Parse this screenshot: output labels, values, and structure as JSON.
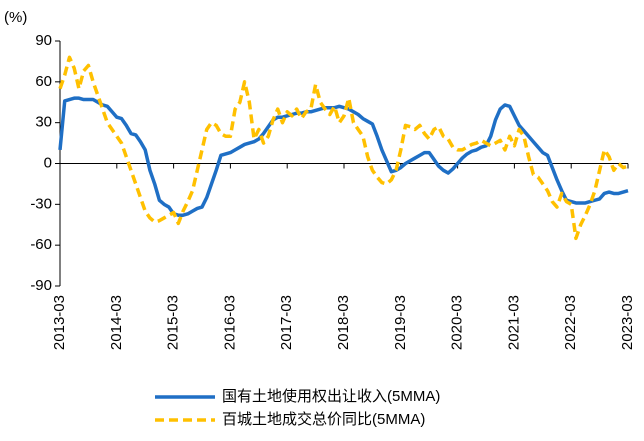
{
  "chart_data": {
    "type": "line",
    "y_unit": "(%)",
    "categories": [
      "2013-03",
      null,
      null,
      null,
      null,
      null,
      null,
      null,
      null,
      null,
      null,
      null,
      "2014-03",
      null,
      null,
      null,
      null,
      null,
      null,
      null,
      null,
      null,
      null,
      null,
      "2015-03",
      null,
      null,
      null,
      null,
      null,
      null,
      null,
      null,
      null,
      null,
      null,
      "2016-03",
      null,
      null,
      null,
      null,
      null,
      null,
      null,
      null,
      null,
      null,
      null,
      "2017-03",
      null,
      null,
      null,
      null,
      null,
      null,
      null,
      null,
      null,
      null,
      null,
      "2018-03",
      null,
      null,
      null,
      null,
      null,
      null,
      null,
      null,
      null,
      null,
      null,
      "2019-03",
      null,
      null,
      null,
      null,
      null,
      null,
      null,
      null,
      null,
      null,
      null,
      "2020-03",
      null,
      null,
      null,
      null,
      null,
      null,
      null,
      null,
      null,
      null,
      null,
      "2021-03",
      null,
      null,
      null,
      null,
      null,
      null,
      null,
      null,
      null,
      null,
      null,
      "2022-03",
      null,
      null,
      null,
      null,
      null,
      null,
      null,
      null,
      null,
      null,
      null,
      "2023-03"
    ],
    "series": [
      {
        "name": "国有土地使用权出让收入(5MMA)",
        "color": "#1f6fc5",
        "style": "solid",
        "values": [
          10,
          46,
          47,
          48,
          48,
          47,
          47,
          47,
          45,
          43,
          42,
          38,
          34,
          33,
          28,
          22,
          21,
          16,
          10,
          -5,
          -15,
          -27,
          -30,
          -32,
          -37,
          -38,
          -38,
          -37,
          -35,
          -33,
          -32,
          -25,
          -15,
          -5,
          6,
          7,
          8,
          10,
          12,
          14,
          15,
          16,
          18,
          22,
          27,
          32,
          34,
          34,
          35,
          36,
          37,
          37,
          38,
          38,
          39,
          40,
          41,
          41,
          41,
          42,
          41,
          40,
          38,
          36,
          33,
          31,
          29,
          20,
          10,
          2,
          -6,
          -5,
          -3,
          0,
          2,
          4,
          6,
          8,
          8,
          3,
          -2,
          -5,
          -7,
          -4,
          0,
          4,
          7,
          9,
          10,
          12,
          13,
          20,
          32,
          40,
          43,
          42,
          35,
          28,
          24,
          20,
          16,
          12,
          8,
          6,
          -3,
          -12,
          -20,
          -27,
          -28,
          -29,
          -29,
          -29,
          -28,
          -27,
          -26,
          -22,
          -21,
          -22,
          -22,
          -21,
          -20
        ]
      },
      {
        "name": "百城土地成交总价同比(5MMA)",
        "color": "#ffc000",
        "style": "dashed",
        "values": [
          55,
          65,
          78,
          70,
          55,
          68,
          72,
          60,
          50,
          40,
          30,
          25,
          20,
          15,
          5,
          -5,
          -15,
          -25,
          -35,
          -40,
          -43,
          -42,
          -40,
          -38,
          -36,
          -44,
          -35,
          -28,
          -20,
          -5,
          10,
          25,
          30,
          28,
          22,
          20,
          20,
          40,
          45,
          60,
          45,
          18,
          25,
          15,
          20,
          32,
          40,
          30,
          38,
          35,
          40,
          33,
          38,
          40,
          58,
          45,
          40,
          36,
          42,
          30,
          35,
          48,
          30,
          25,
          20,
          5,
          -5,
          -10,
          -14,
          -15,
          -12,
          -5,
          10,
          28,
          27,
          25,
          28,
          22,
          18,
          25,
          27,
          20,
          18,
          12,
          10,
          10,
          12,
          14,
          15,
          17,
          15,
          13,
          15,
          17,
          10,
          20,
          13,
          25,
          20,
          5,
          -8,
          -10,
          -15,
          -20,
          -28,
          -32,
          -22,
          -28,
          -30,
          -55,
          -45,
          -38,
          -30,
          -20,
          -5,
          10,
          5,
          -5,
          0,
          -3,
          -2
        ]
      }
    ],
    "ylim": [
      -90,
      90
    ],
    "yticks": [
      -90,
      -60,
      -30,
      0,
      30,
      60,
      90
    ],
    "grid": false
  }
}
